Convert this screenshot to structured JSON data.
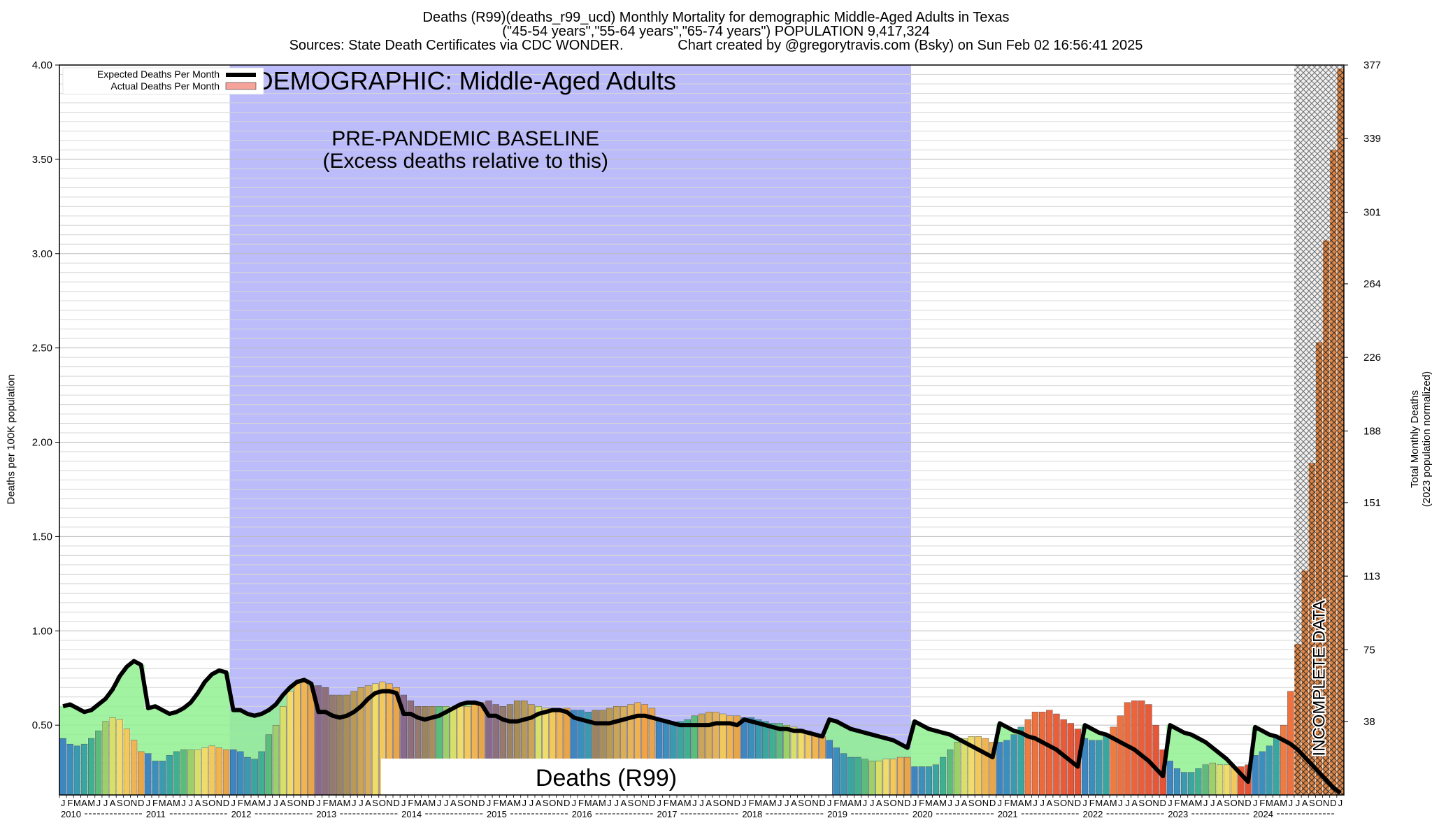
{
  "header": {
    "title_line1": "Deaths (R99)(deaths_r99_ucd) Monthly Mortality for demographic Middle-Aged Adults in Texas",
    "title_line2": "(\"45-54 years\",\"55-64 years\",\"65-74 years\") POPULATION 9,417,324",
    "title_line3": "Sources: State Death Certificates via CDC WONDER.              Chart created by @gregorytravis.com (Bsky) on Sun Feb 02 16:56:41 2025"
  },
  "chart_data": {
    "type": "bar",
    "ylabel": "Deaths per 100K population",
    "y2label_line1": "Total Monthly Deaths",
    "y2label_line2": "(2023 population normalized)",
    "ylim": [
      0.13,
      4.0
    ],
    "y_ticks": [
      "0.50",
      "1.00",
      "1.50",
      "2.00",
      "2.50",
      "3.00",
      "3.50",
      "4.00"
    ],
    "y2_ticks": [
      "38",
      "75",
      "113",
      "151",
      "188",
      "226",
      "264",
      "301",
      "339",
      "377"
    ],
    "grid": true,
    "legend_position": "top-left",
    "legend": {
      "expected": "Expected Deaths Per Month",
      "actual": "Actual Deaths Per Month"
    },
    "month_letters": [
      "J",
      "F",
      "M",
      "A",
      "M",
      "J",
      "J",
      "A",
      "S",
      "O",
      "N",
      "D"
    ],
    "years": [
      "2010",
      "2011",
      "2012",
      "2013",
      "2014",
      "2015",
      "2016",
      "2017",
      "2018",
      "2019",
      "2020",
      "2021",
      "2022",
      "2023",
      "2024"
    ],
    "baseline_label": "DEMOGRAPHIC: Middle-Aged Adults",
    "baseline_sub1": "PRE-PANDEMIC BASELINE",
    "baseline_sub2": "(Excess deaths relative to this)",
    "baseline_years": [
      "2012",
      "2019"
    ],
    "incomplete_label": "INCOMPLETE DATA",
    "cause_label": "Deaths (R99)",
    "series": [
      {
        "name": "Actual Deaths Per Month",
        "values": [
          0.43,
          0.4,
          0.39,
          0.4,
          0.43,
          0.47,
          0.52,
          0.54,
          0.53,
          0.48,
          0.42,
          0.36,
          0.35,
          0.31,
          0.31,
          0.34,
          0.36,
          0.37,
          0.37,
          0.37,
          0.38,
          0.39,
          0.38,
          0.37,
          0.37,
          0.36,
          0.33,
          0.32,
          0.36,
          0.45,
          0.5,
          0.6,
          0.68,
          0.72,
          0.74,
          0.71,
          0.71,
          0.7,
          0.66,
          0.66,
          0.66,
          0.68,
          0.7,
          0.71,
          0.72,
          0.73,
          0.72,
          0.7,
          0.66,
          0.63,
          0.6,
          0.6,
          0.6,
          0.6,
          0.6,
          0.59,
          0.6,
          0.6,
          0.61,
          0.62,
          0.63,
          0.61,
          0.6,
          0.61,
          0.63,
          0.63,
          0.61,
          0.6,
          0.59,
          0.59,
          0.58,
          0.59,
          0.58,
          0.58,
          0.57,
          0.58,
          0.58,
          0.59,
          0.6,
          0.6,
          0.61,
          0.62,
          0.61,
          0.59,
          0.52,
          0.52,
          0.51,
          0.52,
          0.53,
          0.55,
          0.56,
          0.57,
          0.57,
          0.56,
          0.55,
          0.55,
          0.54,
          0.54,
          0.53,
          0.52,
          0.51,
          0.51,
          0.5,
          0.49,
          0.48,
          0.47,
          0.45,
          0.44,
          0.42,
          0.38,
          0.35,
          0.33,
          0.33,
          0.32,
          0.31,
          0.31,
          0.32,
          0.32,
          0.33,
          0.33,
          0.28,
          0.28,
          0.28,
          0.29,
          0.33,
          0.37,
          0.41,
          0.43,
          0.44,
          0.44,
          0.43,
          0.41,
          0.41,
          0.42,
          0.45,
          0.49,
          0.53,
          0.57,
          0.57,
          0.58,
          0.56,
          0.53,
          0.51,
          0.48,
          0.43,
          0.42,
          0.42,
          0.44,
          0.49,
          0.55,
          0.62,
          0.63,
          0.63,
          0.61,
          0.5,
          0.37,
          0.31,
          0.27,
          0.25,
          0.25,
          0.27,
          0.29,
          0.3,
          0.29,
          0.29,
          0.28,
          0.28,
          0.29,
          0.34,
          0.36,
          0.39,
          0.44,
          0.5,
          0.68,
          0.93,
          1.32,
          1.89,
          2.53,
          3.07,
          3.55,
          3.98
        ]
      },
      {
        "name": "Expected Deaths Per Month",
        "values": [
          0.6,
          0.61,
          0.59,
          0.57,
          0.58,
          0.61,
          0.64,
          0.69,
          0.76,
          0.81,
          0.84,
          0.82,
          0.59,
          0.6,
          0.58,
          0.56,
          0.57,
          0.59,
          0.62,
          0.67,
          0.73,
          0.77,
          0.79,
          0.78,
          0.58,
          0.58,
          0.56,
          0.55,
          0.56,
          0.58,
          0.61,
          0.66,
          0.7,
          0.73,
          0.74,
          0.72,
          0.57,
          0.57,
          0.55,
          0.54,
          0.55,
          0.57,
          0.6,
          0.64,
          0.67,
          0.68,
          0.68,
          0.67,
          0.56,
          0.56,
          0.54,
          0.53,
          0.54,
          0.55,
          0.57,
          0.59,
          0.61,
          0.62,
          0.62,
          0.61,
          0.55,
          0.55,
          0.53,
          0.52,
          0.52,
          0.53,
          0.54,
          0.56,
          0.57,
          0.58,
          0.58,
          0.57,
          0.54,
          0.53,
          0.52,
          0.51,
          0.51,
          0.51,
          0.52,
          0.53,
          0.54,
          0.55,
          0.55,
          0.54,
          0.53,
          0.52,
          0.51,
          0.5,
          0.5,
          0.5,
          0.5,
          0.5,
          0.51,
          0.51,
          0.51,
          0.5,
          0.53,
          0.52,
          0.51,
          0.5,
          0.49,
          0.48,
          0.48,
          0.47,
          0.47,
          0.46,
          0.45,
          0.44,
          0.53,
          0.52,
          0.5,
          0.48,
          0.47,
          0.46,
          0.45,
          0.44,
          0.43,
          0.42,
          0.4,
          0.38,
          0.52,
          0.5,
          0.48,
          0.47,
          0.46,
          0.45,
          0.43,
          0.41,
          0.39,
          0.37,
          0.35,
          0.33,
          0.51,
          0.49,
          0.47,
          0.46,
          0.44,
          0.43,
          0.41,
          0.39,
          0.37,
          0.34,
          0.31,
          0.28,
          0.5,
          0.48,
          0.46,
          0.45,
          0.43,
          0.41,
          0.39,
          0.37,
          0.34,
          0.31,
          0.27,
          0.23,
          0.5,
          0.48,
          0.46,
          0.45,
          0.43,
          0.41,
          0.38,
          0.35,
          0.32,
          0.28,
          0.24,
          0.2,
          0.49,
          0.47,
          0.45,
          0.44,
          0.42,
          0.4,
          0.37,
          0.33,
          0.29,
          0.25,
          0.21,
          0.17,
          0.14
        ]
      }
    ]
  }
}
